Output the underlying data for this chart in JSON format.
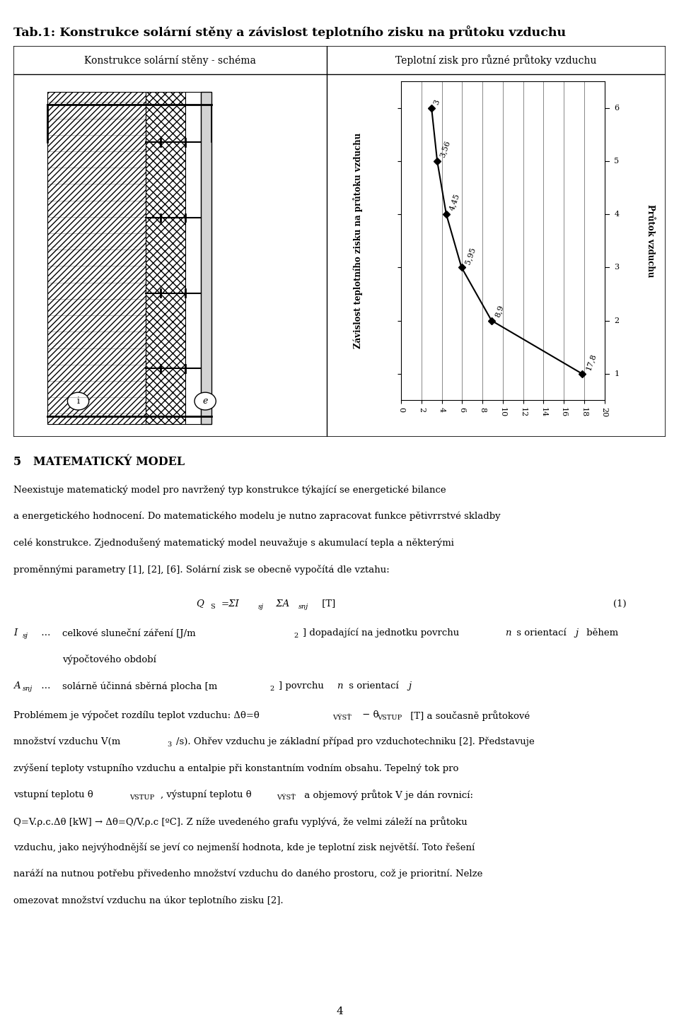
{
  "title": "Tab.1: Konstrukce solární stěny a závislost teplotního zisku na průtoku vzduchu",
  "col1_header": "Konstrukce solární stěny - schéma",
  "col2_header": "Teplotní zisk pro různé průtoky vzduchu",
  "graph_ylabel_left": "Závislost teplotního zisku na průtoku vzduchu",
  "graph_ylabel_right": "Průtok vzduchu",
  "x_data": [
    17.8,
    8.9,
    5.95,
    4.45,
    3.56,
    3.0
  ],
  "y_data": [
    1,
    2,
    3,
    4,
    5,
    6
  ],
  "x_ticks": [
    0,
    2,
    4,
    6,
    8,
    10,
    12,
    14,
    16,
    18,
    20
  ],
  "y_ticks": [
    1,
    2,
    3,
    4,
    5,
    6
  ],
  "x_tick_labels": [
    "0",
    "2",
    "4",
    "6",
    "8",
    "10",
    "12",
    "14",
    "16",
    "18",
    "20"
  ],
  "point_labels": [
    "17,8",
    "8,9",
    "5,95",
    "4,45",
    "3,56",
    "3"
  ],
  "background_color": "#ffffff",
  "text_color": "#000000",
  "grid_color": "#888888",
  "line_color": "#000000",
  "marker_color": "#000000",
  "page_number": "4"
}
